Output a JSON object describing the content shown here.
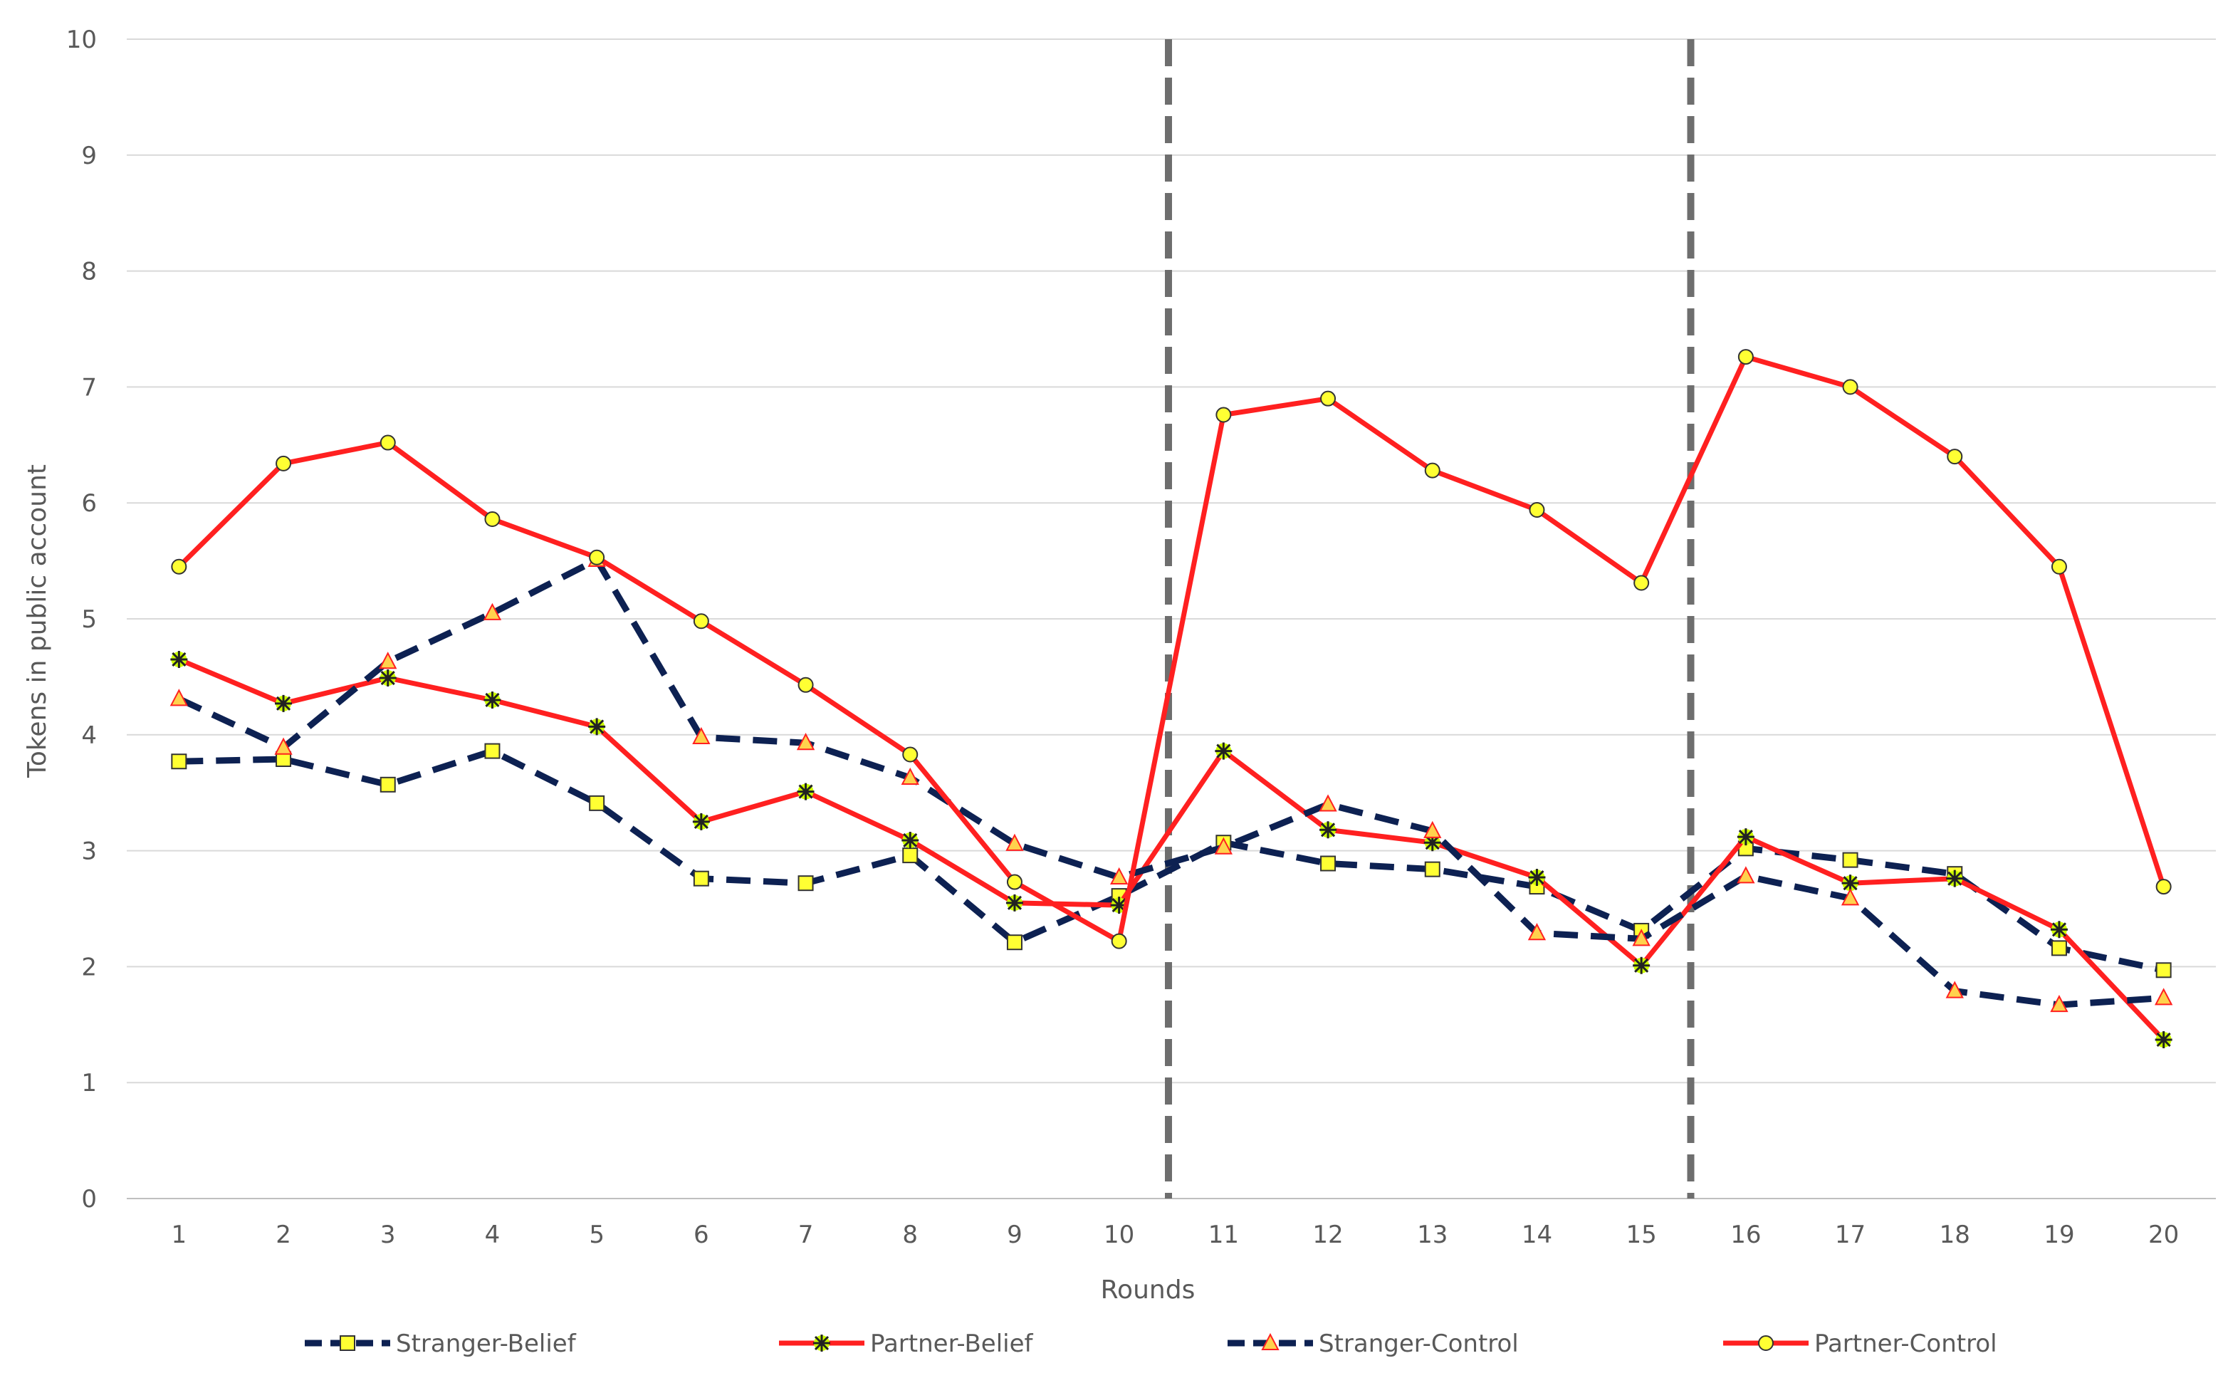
{
  "chart_data": {
    "type": "line",
    "title": "",
    "xlabel": "Rounds",
    "ylabel": "Tokens in public account",
    "ylim": [
      0,
      10
    ],
    "yticks": [
      "0",
      "1",
      "2",
      "3",
      "4",
      "5",
      "6",
      "7",
      "8",
      "9",
      "10"
    ],
    "categories": [
      "1",
      "2",
      "3",
      "4",
      "5",
      "6",
      "7",
      "8",
      "9",
      "10",
      "11",
      "12",
      "13",
      "14",
      "15",
      "16",
      "17",
      "18",
      "19",
      "20"
    ],
    "grid": true,
    "legend_position": "bottom",
    "phase_dividers_after_round": [
      10,
      15
    ],
    "series": [
      {
        "name": "Stranger-Belief",
        "color": "#0d2152",
        "line_style": "dashed",
        "marker": "square",
        "marker_color": "#ffff33",
        "values": [
          3.77,
          3.79,
          3.57,
          3.86,
          3.41,
          2.76,
          2.72,
          2.96,
          2.21,
          2.61,
          3.07,
          2.89,
          2.84,
          2.69,
          2.31,
          3.02,
          2.92,
          2.8,
          2.16,
          1.97
        ]
      },
      {
        "name": "Partner-Belief",
        "color": "#ff2020",
        "line_style": "solid",
        "marker": "asterisk",
        "marker_color": "#ccff00",
        "values": [
          4.65,
          4.27,
          4.49,
          4.3,
          4.07,
          3.25,
          3.51,
          3.09,
          2.55,
          2.53,
          3.86,
          3.18,
          3.07,
          2.77,
          2.01,
          3.12,
          2.72,
          2.76,
          2.32,
          1.37
        ]
      },
      {
        "name": "Stranger-Control",
        "color": "#0d2152",
        "line_style": "dashed",
        "marker": "triangle",
        "marker_color": "#ffd24d",
        "values": [
          4.31,
          3.89,
          4.63,
          5.05,
          5.51,
          3.98,
          3.93,
          3.63,
          3.06,
          2.77,
          3.03,
          3.4,
          3.17,
          2.29,
          2.24,
          2.78,
          2.59,
          1.79,
          1.67,
          1.73
        ]
      },
      {
        "name": "Partner-Control",
        "color": "#ff2020",
        "line_style": "solid",
        "marker": "circle",
        "marker_color": "#ffff33",
        "values": [
          5.45,
          6.34,
          6.52,
          5.86,
          5.53,
          4.98,
          4.43,
          3.83,
          2.73,
          2.22,
          6.76,
          6.9,
          6.28,
          5.94,
          5.31,
          7.26,
          7.0,
          6.4,
          5.45,
          2.69
        ]
      }
    ]
  }
}
